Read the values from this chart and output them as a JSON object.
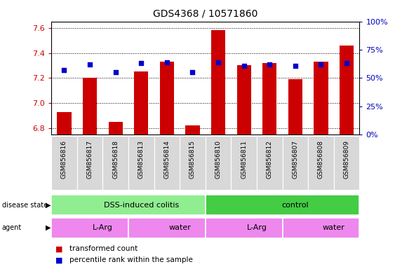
{
  "title": "GDS4368 / 10571860",
  "samples": [
    "GSM856816",
    "GSM856817",
    "GSM856818",
    "GSM856813",
    "GSM856814",
    "GSM856815",
    "GSM856810",
    "GSM856811",
    "GSM856812",
    "GSM856807",
    "GSM856808",
    "GSM856809"
  ],
  "bar_values": [
    6.93,
    7.2,
    6.85,
    7.25,
    7.33,
    6.82,
    7.58,
    7.3,
    7.32,
    7.19,
    7.33,
    7.46
  ],
  "percentile_values": [
    57,
    62,
    55,
    63,
    64,
    55,
    64,
    61,
    62,
    61,
    62,
    63
  ],
  "ymin": 6.75,
  "ymax": 7.65,
  "yticks": [
    6.8,
    7.0,
    7.2,
    7.4,
    7.6
  ],
  "right_yticks": [
    0,
    25,
    50,
    75,
    100
  ],
  "right_ytick_labels": [
    "0%",
    "25%",
    "50%",
    "75%",
    "100%"
  ],
  "bar_color": "#cc0000",
  "percentile_color": "#0000cc",
  "disease_state_groups": [
    {
      "label": "DSS-induced colitis",
      "start": 0,
      "end": 6,
      "color": "#90ee90"
    },
    {
      "label": "control",
      "start": 6,
      "end": 12,
      "color": "#44cc44"
    }
  ],
  "agent_groups": [
    {
      "label": "L-Arg",
      "start": 0,
      "end": 3,
      "color": "#ee88ee"
    },
    {
      "label": "water",
      "start": 3,
      "end": 6,
      "color": "#ee88ee"
    },
    {
      "label": "L-Arg",
      "start": 6,
      "end": 9,
      "color": "#ee88ee"
    },
    {
      "label": "water",
      "start": 9,
      "end": 12,
      "color": "#ee88ee"
    }
  ],
  "legend_items": [
    {
      "label": "transformed count",
      "color": "#cc0000"
    },
    {
      "label": "percentile rank within the sample",
      "color": "#0000cc"
    }
  ],
  "tick_label_color": "#cc0000",
  "right_tick_label_color": "#0000bb"
}
